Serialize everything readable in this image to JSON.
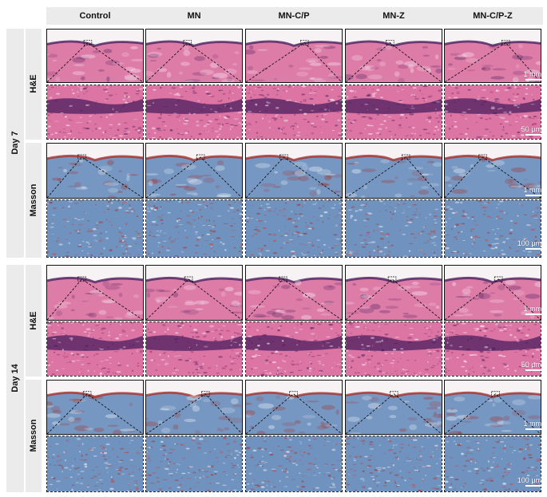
{
  "columns": [
    "Control",
    "MN",
    "MN-C/P",
    "MN-Z",
    "MN-C/P-Z"
  ],
  "days": [
    {
      "label": "Day 7"
    },
    {
      "label": "Day 14"
    }
  ],
  "stains": [
    "H&E",
    "Masson"
  ],
  "scale_bars": {
    "overview": "1 mm",
    "he_zoom": "50 μm",
    "masson_zoom": "100 μm"
  },
  "colors": {
    "header_bg": "#ebebeb",
    "he_tissue": "#d9669a",
    "he_epidermis": "#4a1f5e",
    "masson_collagen": "#5f86b8",
    "masson_muscle": "#a8302a",
    "background": "#ffffff"
  }
}
